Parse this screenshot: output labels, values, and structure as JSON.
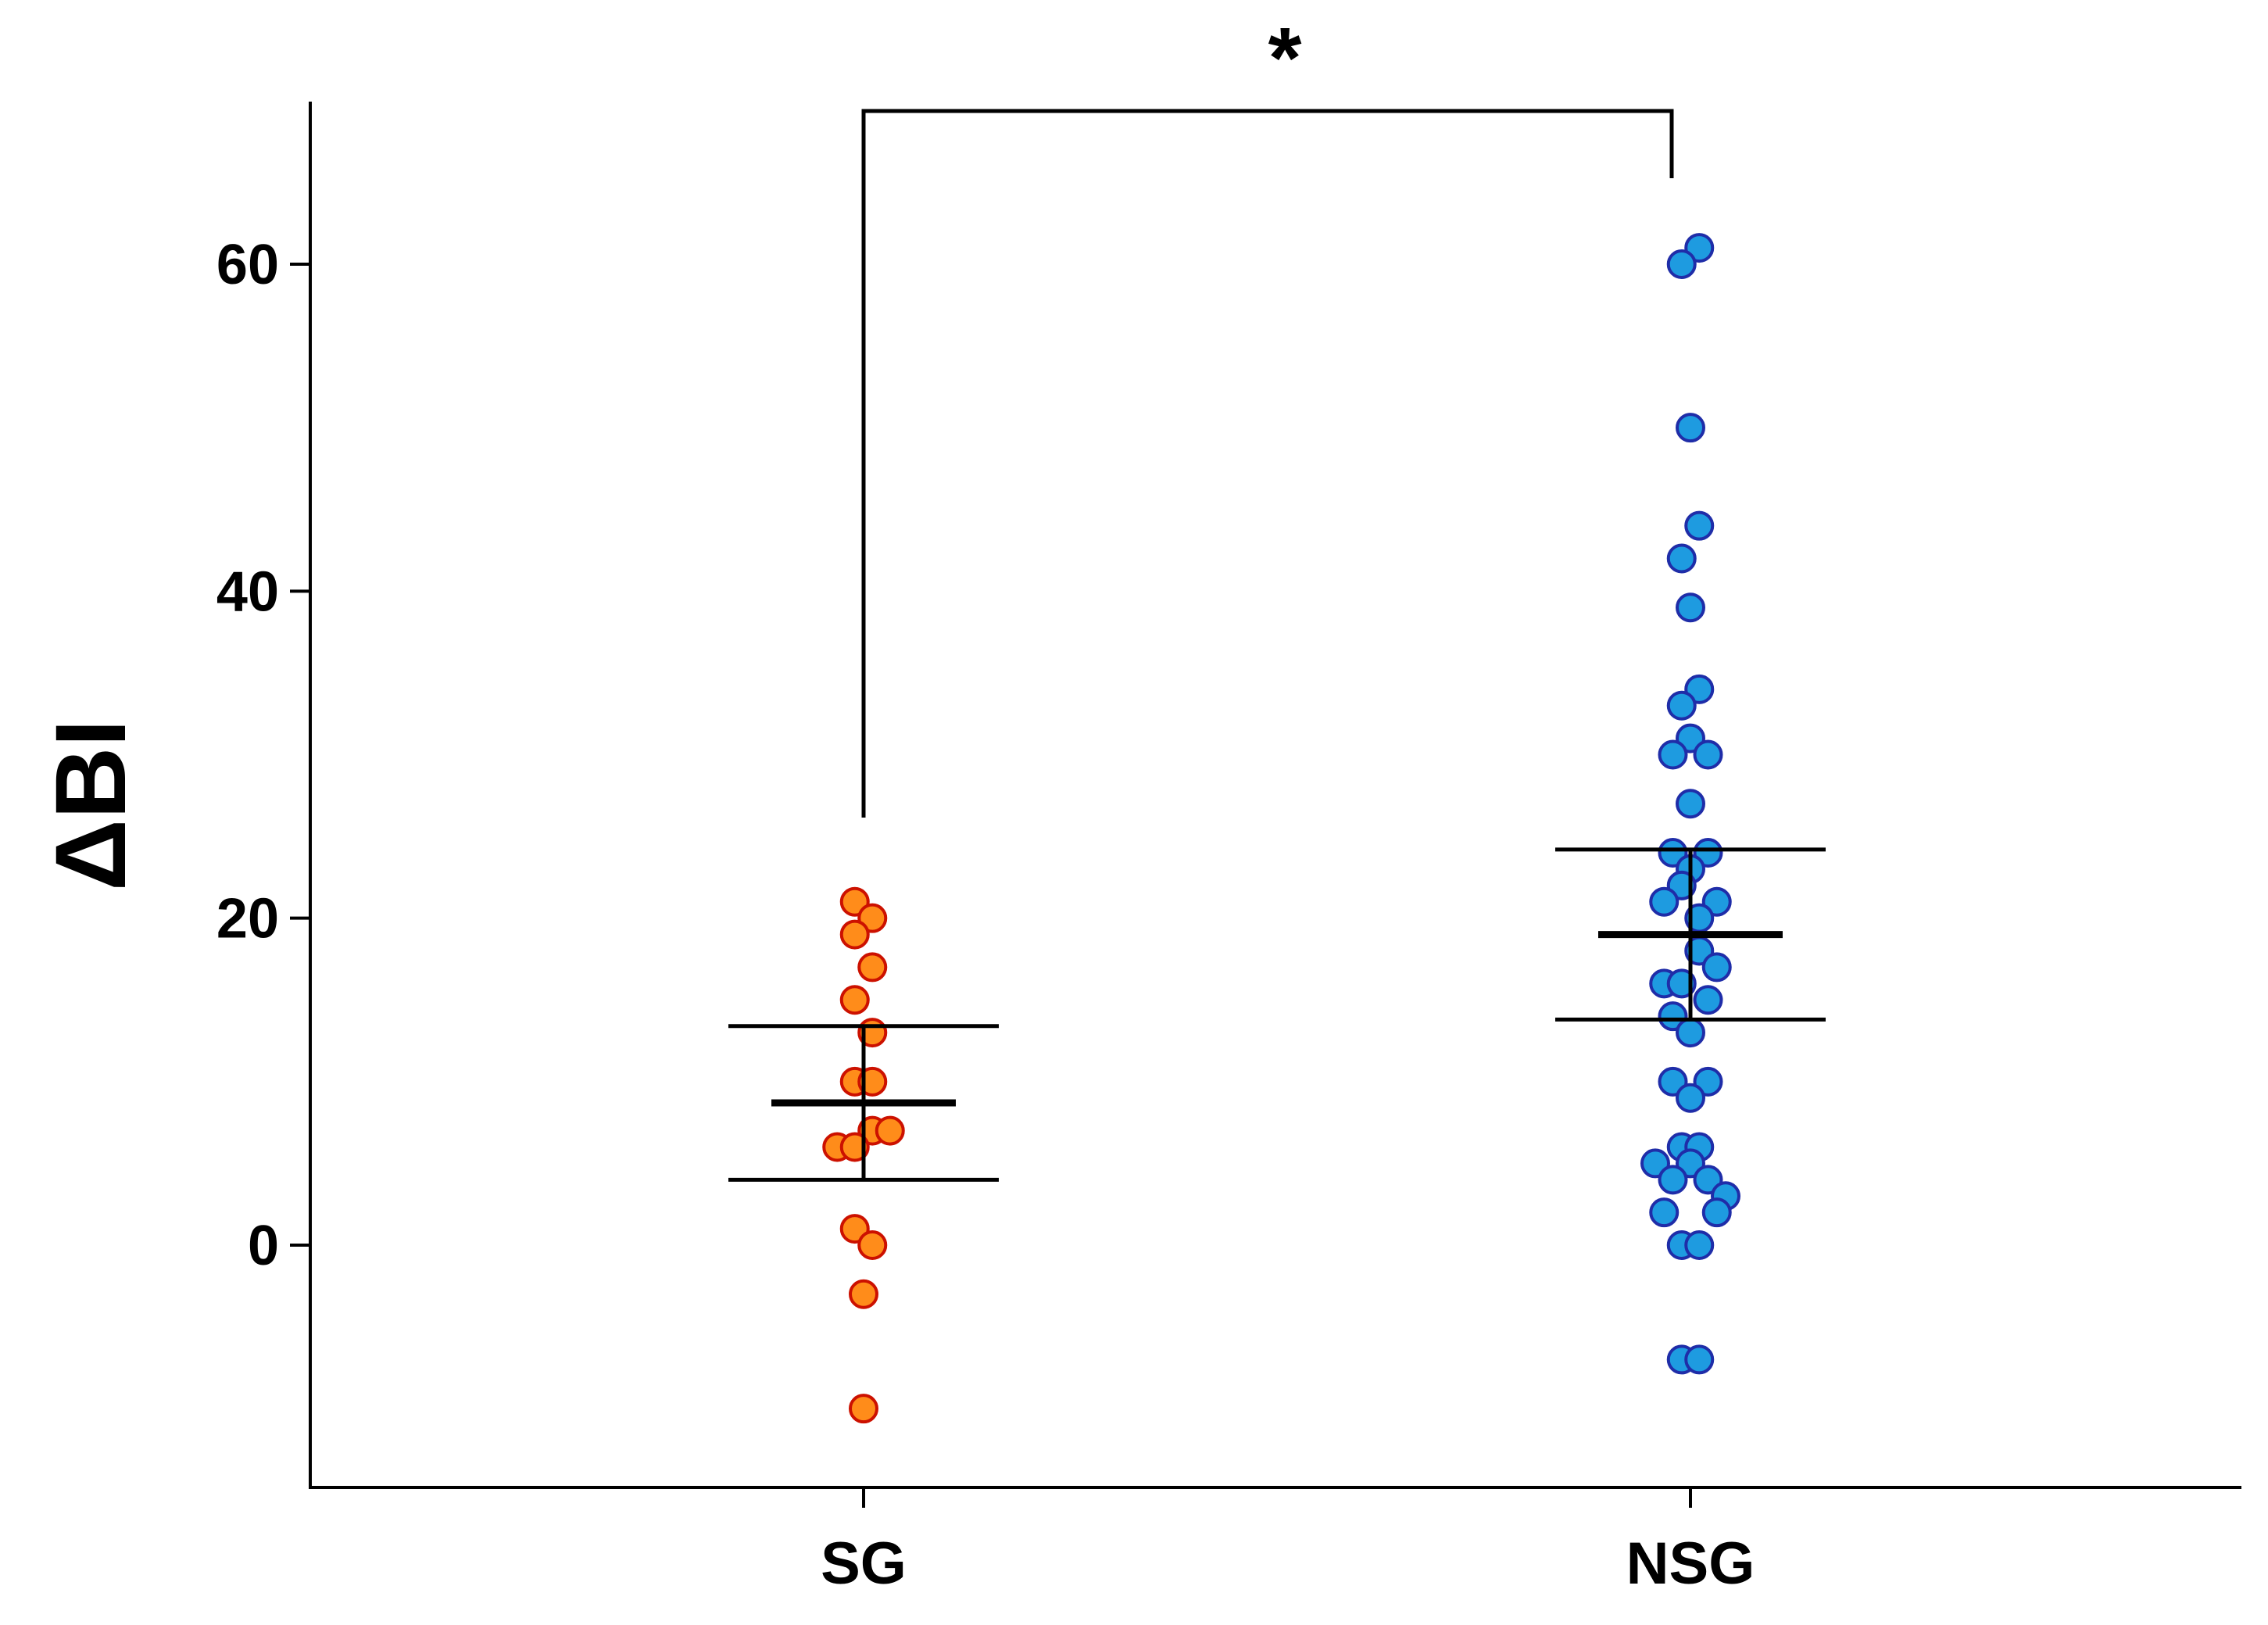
{
  "chart_data": {
    "type": "scatter",
    "title": "",
    "xlabel": "",
    "ylabel": "ΔBI",
    "ylim": [
      -15,
      70
    ],
    "yticks": [
      0,
      20,
      40,
      60
    ],
    "ytick_labels": [
      "0",
      "20",
      "40",
      "60"
    ],
    "categories": [
      "SG",
      "NSG"
    ],
    "series": [
      {
        "name": "SG",
        "fill": "#FF8C1A",
        "stroke": "#CC1100",
        "mean": 8.7,
        "error_upper": 13.4,
        "error_lower": 4.0,
        "points": [
          {
            "y": 21,
            "offset": -0.05
          },
          {
            "y": 20,
            "offset": 0.05
          },
          {
            "y": 19,
            "offset": -0.05
          },
          {
            "y": 17,
            "offset": 0.05
          },
          {
            "y": 15,
            "offset": -0.05
          },
          {
            "y": 13,
            "offset": 0.05
          },
          {
            "y": 10,
            "offset": -0.05
          },
          {
            "y": 10,
            "offset": 0.05
          },
          {
            "y": 7,
            "offset": 0.05
          },
          {
            "y": 7,
            "offset": 0.15
          },
          {
            "y": 6,
            "offset": -0.15
          },
          {
            "y": 6,
            "offset": -0.05
          },
          {
            "y": 1,
            "offset": -0.05
          },
          {
            "y": 0,
            "offset": 0.05
          },
          {
            "y": -3,
            "offset": 0.0
          },
          {
            "y": -10,
            "offset": 0.0
          }
        ]
      },
      {
        "name": "NSG",
        "fill": "#1E9BE0",
        "stroke": "#1F2DA8",
        "mean": 19.0,
        "error_upper": 24.2,
        "error_lower": 13.8,
        "points": [
          {
            "y": 61,
            "offset": 0.05
          },
          {
            "y": 60,
            "offset": -0.05
          },
          {
            "y": 50,
            "offset": 0.0
          },
          {
            "y": 44,
            "offset": 0.05
          },
          {
            "y": 42,
            "offset": -0.05
          },
          {
            "y": 39,
            "offset": 0.0
          },
          {
            "y": 34,
            "offset": 0.05
          },
          {
            "y": 33,
            "offset": -0.05
          },
          {
            "y": 31,
            "offset": 0.0
          },
          {
            "y": 30,
            "offset": -0.1
          },
          {
            "y": 30,
            "offset": 0.1
          },
          {
            "y": 27,
            "offset": 0.0
          },
          {
            "y": 24,
            "offset": -0.1
          },
          {
            "y": 24,
            "offset": 0.1
          },
          {
            "y": 23,
            "offset": 0.0
          },
          {
            "y": 22,
            "offset": -0.05
          },
          {
            "y": 21,
            "offset": -0.15
          },
          {
            "y": 21,
            "offset": 0.15
          },
          {
            "y": 20,
            "offset": 0.05
          },
          {
            "y": 18,
            "offset": 0.05
          },
          {
            "y": 16,
            "offset": -0.15
          },
          {
            "y": 16,
            "offset": -0.05
          },
          {
            "y": 17,
            "offset": 0.15
          },
          {
            "y": 15,
            "offset": 0.1
          },
          {
            "y": 14,
            "offset": -0.1
          },
          {
            "y": 13,
            "offset": 0.0
          },
          {
            "y": 10,
            "offset": -0.1
          },
          {
            "y": 10,
            "offset": 0.1
          },
          {
            "y": 9,
            "offset": 0.0
          },
          {
            "y": 6,
            "offset": -0.05
          },
          {
            "y": 6,
            "offset": 0.05
          },
          {
            "y": 5,
            "offset": -0.2
          },
          {
            "y": 5,
            "offset": 0.0
          },
          {
            "y": 4,
            "offset": -0.1
          },
          {
            "y": 4,
            "offset": 0.1
          },
          {
            "y": 3,
            "offset": 0.2
          },
          {
            "y": 2,
            "offset": -0.15
          },
          {
            "y": 2,
            "offset": 0.15
          },
          {
            "y": 0,
            "offset": -0.05
          },
          {
            "y": 0,
            "offset": 0.05
          },
          {
            "y": -7,
            "offset": -0.05
          },
          {
            "y": -7,
            "offset": 0.05
          }
        ]
      }
    ],
    "annotations": [
      {
        "text": "*",
        "between": [
          "SG",
          "NSG"
        ]
      }
    ]
  }
}
